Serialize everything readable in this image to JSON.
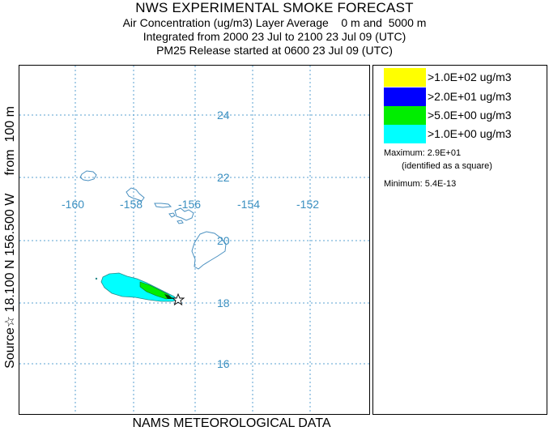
{
  "header": {
    "title": "NWS EXPERIMENTAL SMOKE FORECAST",
    "line2": "Air Concentration (ug/m3) Layer Average    0 m and  5000 m",
    "line3": "Integrated from 2000 23 Jul to 2100 23 Jul 09 (UTC)",
    "line4": "PM25 Release started at 0600 23 Jul 09 (UTC)"
  },
  "side_label": "Source☆ 18.100 N 156.500 W     from  100 m",
  "footer": "NAMS METEOROLOGICAL DATA",
  "map": {
    "lon_labels": [
      "-160",
      "-158",
      "-156",
      "-154",
      "-152"
    ],
    "lat_labels": [
      "24",
      "22",
      "20",
      "18",
      "16"
    ],
    "grid_color": "#5aa0d0",
    "label_color": "#3a8fc0",
    "coast_color": "#4a90c0",
    "source_marker": "star-icon"
  },
  "legend": {
    "items": [
      {
        "label": ">1.0E+02 ug/m3",
        "color": "#ffff00"
      },
      {
        "label": ">2.0E+01 ug/m3",
        "color": "#0000ff"
      },
      {
        "label": ">5.0E+00 ug/m3",
        "color": "#00ee00"
      },
      {
        "label": ">1.0E+00 ug/m3",
        "color": "#00ffff"
      }
    ],
    "maximum": "Maximum: 2.9E+01",
    "maximum_note": "(identified as a square)",
    "minimum": "Minimum: 5.4E-13"
  }
}
